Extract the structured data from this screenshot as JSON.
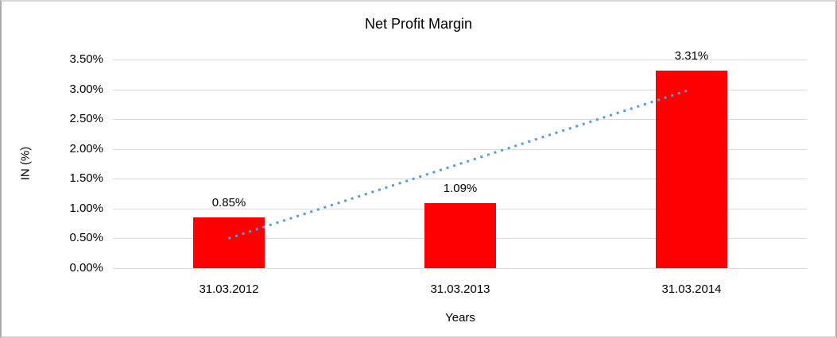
{
  "chart_data": {
    "type": "bar",
    "title": "Net Profit Margin",
    "xlabel": "Years",
    "ylabel": "IN (%)",
    "categories": [
      "31.03.2012",
      "31.03.2013",
      "31.03.2014"
    ],
    "values": [
      0.85,
      1.09,
      3.31
    ],
    "data_labels": [
      "0.85%",
      "1.09%",
      "3.31%"
    ],
    "ytick_labels": [
      "0.00%",
      "0.50%",
      "1.00%",
      "1.50%",
      "2.00%",
      "2.50%",
      "3.00%",
      "3.50%"
    ],
    "ylim": [
      0,
      3.5
    ],
    "ytick_step": 0.5,
    "grid": true,
    "legend": "none",
    "bar_color": "#ff0000",
    "gridline_color": "#d9d9d9",
    "text_color": "#000000",
    "trendline": {
      "type": "linear",
      "style": "dotted",
      "color": "#5b9bd5",
      "start_value": 0.5,
      "end_value": 3.0
    }
  }
}
